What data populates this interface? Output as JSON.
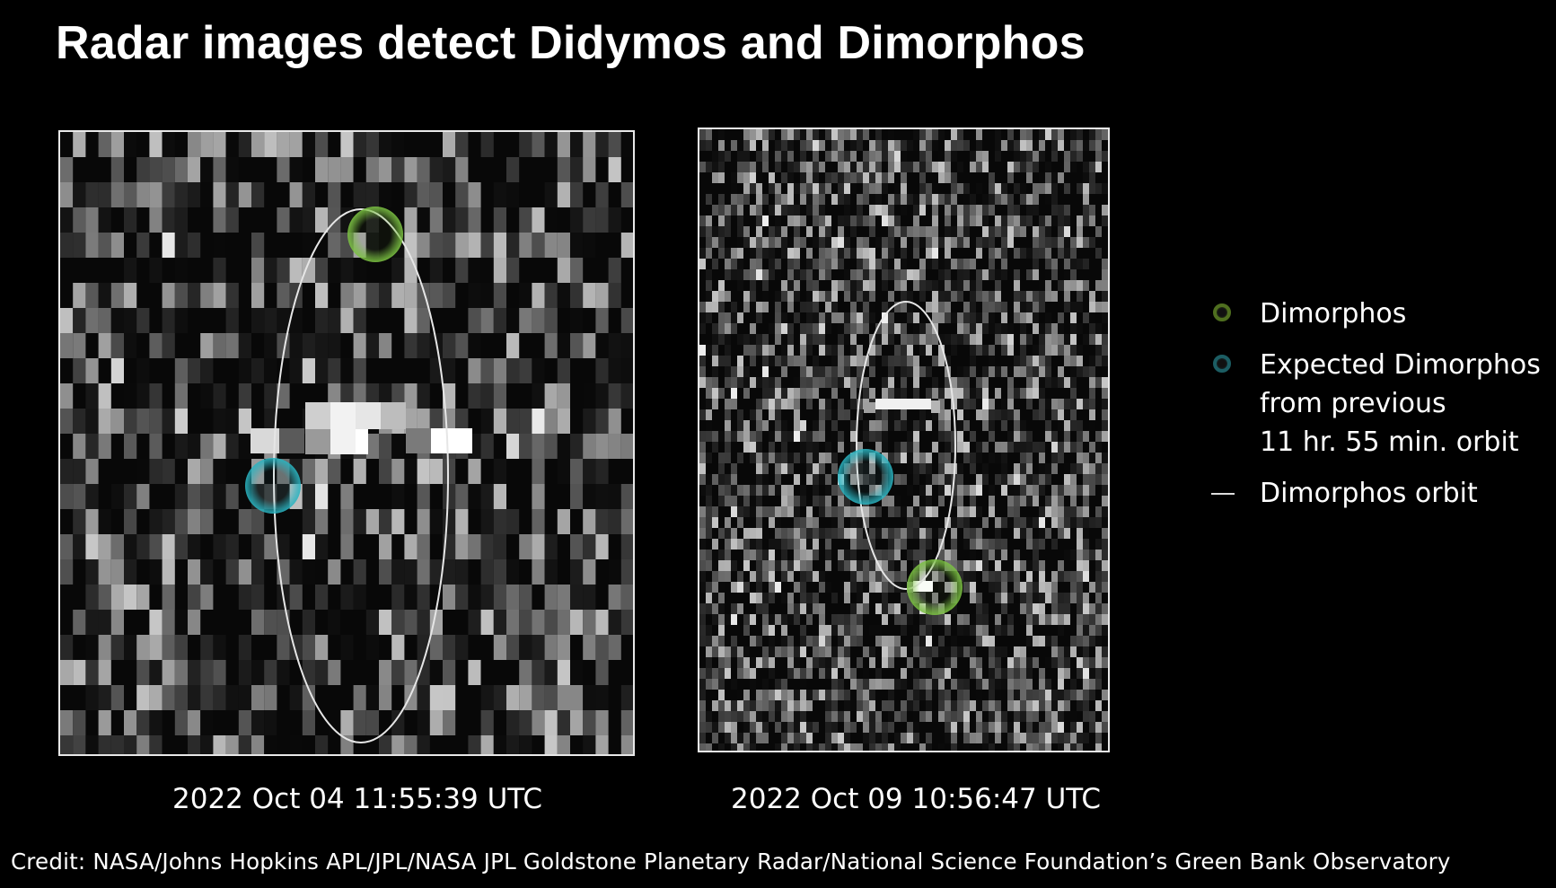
{
  "title": "Radar images detect Didymos and Dimorphos",
  "panels": [
    {
      "caption": "2022 Oct 04 11:55:39 UTC"
    },
    {
      "caption": "2022 Oct 09 10:56:47 UTC"
    }
  ],
  "legend": {
    "dimorphos": "Dimorphos",
    "expected_line1": "Expected Dimorphos",
    "expected_line2": "from previous",
    "expected_line3": "11 hr. 55 min. orbit",
    "orbit": "Dimorphos orbit"
  },
  "credit": "Credit: NASA/Johns Hopkins APL/JPL/NASA JPL Goldstone Planetary Radar/National Science Foundation’s Green Bank Observatory",
  "colors": {
    "dimorphos_marker": "#7bc142",
    "expected_marker": "#2ab3c0",
    "orbit_line": "#e6e6e6",
    "background": "#000000"
  }
}
